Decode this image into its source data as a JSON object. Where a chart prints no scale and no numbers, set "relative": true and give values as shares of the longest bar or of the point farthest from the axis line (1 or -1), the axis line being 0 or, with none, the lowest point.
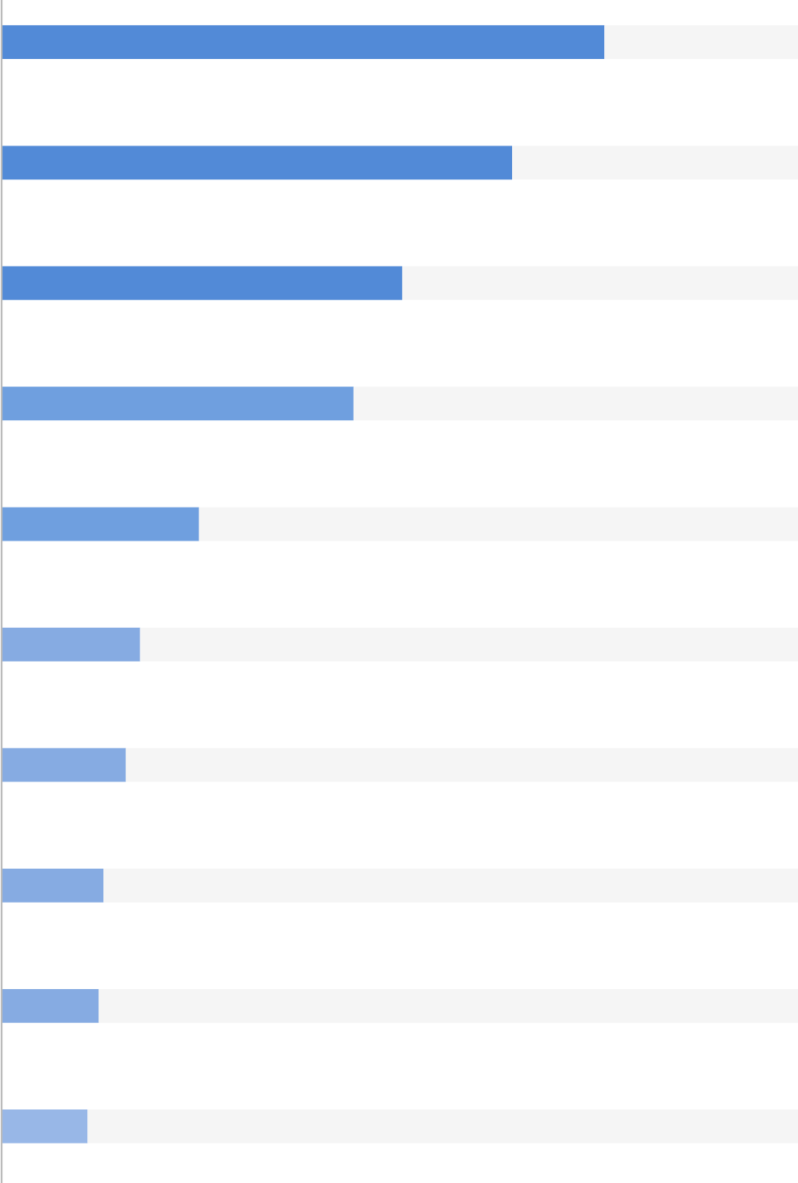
{
  "chart_data": {
    "type": "bar",
    "orientation": "horizontal",
    "relative": true,
    "stacked": true,
    "categories": [
      null,
      null,
      null,
      null,
      null,
      null,
      null,
      null,
      null,
      null
    ],
    "series": [
      {
        "color": "#528ad7",
        "colors": [
          "#528ad7",
          "#528ad7",
          "#528ad7",
          "#6f9fdf",
          "#6f9fdf",
          "#86abe2",
          "#86abe2",
          "#86abe2",
          "#86abe2",
          "#98b7e7"
        ],
        "values": [
          0.757,
          0.641,
          0.503,
          0.442,
          0.248,
          0.174,
          0.156,
          0.128,
          0.122,
          0.108
        ]
      },
      {
        "color": "#f5f5f5",
        "values": [
          0.243,
          0.359,
          0.497,
          0.558,
          0.752,
          0.826,
          0.844,
          0.872,
          0.878,
          0.892
        ]
      }
    ]
  }
}
